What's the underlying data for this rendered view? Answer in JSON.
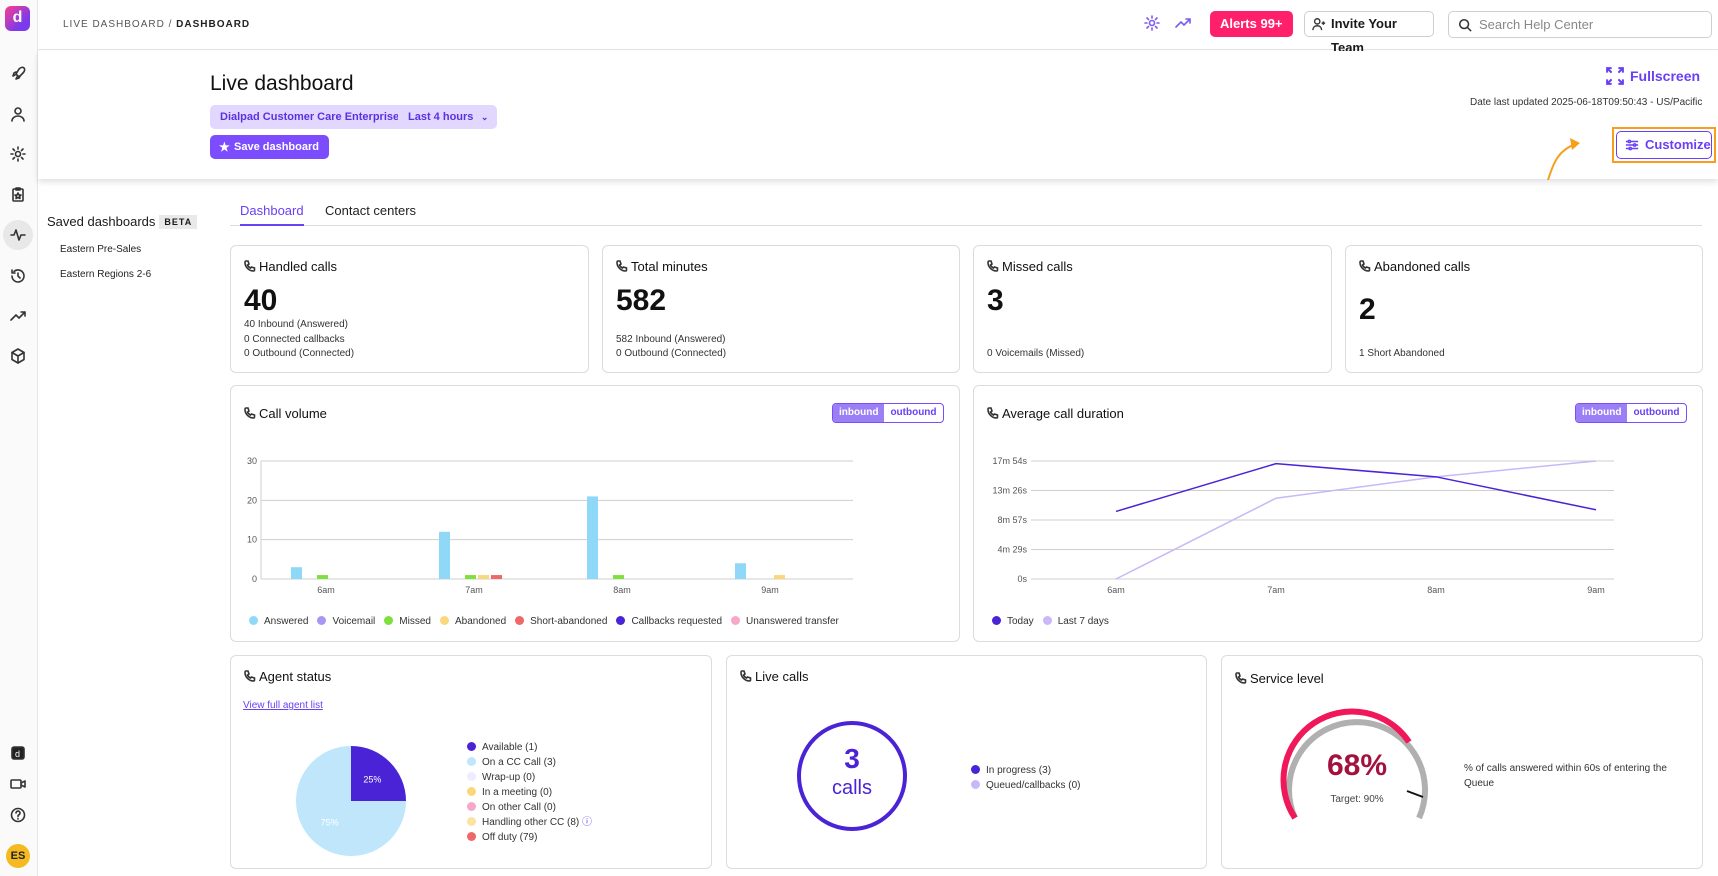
{
  "breadcrumb": {
    "section": "LIVE DASHBOARD",
    "sep": " / ",
    "page": "DASHBOARD"
  },
  "topbar": {
    "alerts_label": "Alerts 99+",
    "invite_label": "Invite Your Team",
    "search_placeholder": "Search Help Center"
  },
  "header": {
    "title": "Live dashboard",
    "chip_org": "Dialpad Customer Care Enterprise",
    "chip_range": "Last 4 hours",
    "save_label": "Save dashboard",
    "fullscreen_label": "Fullscreen",
    "updated": "Date last updated 2025-06-18T09:50:43 - US/Pacific",
    "customize_label": "Customize"
  },
  "saved": {
    "title": "Saved dashboards",
    "badge": "BETA",
    "items": [
      "Eastern Pre-Sales",
      "Eastern Regions 2-6"
    ]
  },
  "tabs": [
    "Dashboard",
    "Contact centers"
  ],
  "stats": [
    {
      "title": "Handled calls",
      "value": "40",
      "lines": [
        "40 Inbound (Answered)",
        "0 Connected callbacks",
        "0 Outbound (Connected)"
      ]
    },
    {
      "title": "Total minutes",
      "value": "582",
      "lines": [
        "582 Inbound (Answered)",
        "0 Outbound (Connected)"
      ]
    },
    {
      "title": "Missed calls",
      "value": "3",
      "lines": [
        "0 Voicemails (Missed)"
      ]
    },
    {
      "title": "Abandoned calls",
      "value": "2",
      "lines": [
        "1 Short Abandoned"
      ]
    }
  ],
  "toggle": {
    "inbound": "inbound",
    "outbound": "outbound"
  },
  "call_volume": {
    "title": "Call volume",
    "legend": [
      "Answered",
      "Voicemail",
      "Missed",
      "Abandoned",
      "Short-abandoned",
      "Callbacks requested",
      "Unanswered transfer"
    ],
    "colors": [
      "#8fd8f7",
      "#a996f2",
      "#7ee03a",
      "#f9d77a",
      "#ef6767",
      "#4a23d6",
      "#f7a8c9"
    ]
  },
  "avg_duration": {
    "title": "Average call duration",
    "legend": [
      "Today",
      "Last 7 days"
    ],
    "colors": [
      "#4a23d6",
      "#c9b8f7"
    ]
  },
  "agent_status": {
    "title": "Agent status",
    "link": "View full agent list",
    "legend": [
      "Available (1)",
      "On a CC Call (3)",
      "Wrap-up (0)",
      "In a meeting (0)",
      "On other Call (0)",
      "Handling other CC (8)",
      "Off duty (79)"
    ],
    "colors": [
      "#4a23d6",
      "#bfe6fb",
      "#f1ecfd",
      "#f9d77a",
      "#f7a8c9",
      "#fbe3a0",
      "#ef6767"
    ],
    "pie_labels": [
      "25%",
      "75%"
    ]
  },
  "live_calls": {
    "title": "Live calls",
    "count": "3",
    "unit": "calls",
    "legend": [
      "In progress (3)",
      "Queued/callbacks (0)"
    ],
    "colors": [
      "#4a23d6",
      "#c9b8f7"
    ]
  },
  "service_level": {
    "title": "Service level",
    "value": "68%",
    "target": "Target: 90%",
    "description": "% of calls answered within 60s of entering the Queue"
  },
  "chart_data": [
    {
      "type": "bar",
      "title": "Call volume",
      "categories": [
        "6am",
        "7am",
        "8am",
        "9am"
      ],
      "ylim": [
        0,
        30
      ],
      "yticks": [
        "0",
        "10",
        "20",
        "30"
      ],
      "series": [
        {
          "name": "Answered",
          "values": [
            3,
            12,
            21,
            4
          ]
        },
        {
          "name": "Voicemail",
          "values": [
            0,
            0,
            0,
            0
          ]
        },
        {
          "name": "Missed",
          "values": [
            1,
            1,
            1,
            0
          ]
        },
        {
          "name": "Abandoned",
          "values": [
            0,
            1,
            0,
            1
          ]
        },
        {
          "name": "Short-abandoned",
          "values": [
            0,
            1,
            0,
            0
          ]
        },
        {
          "name": "Callbacks requested",
          "values": [
            0,
            0,
            0,
            0
          ]
        },
        {
          "name": "Unanswered transfer",
          "values": [
            0,
            0,
            0,
            0
          ]
        }
      ]
    },
    {
      "type": "line",
      "title": "Average call duration",
      "categories": [
        "6am",
        "7am",
        "8am",
        "9am"
      ],
      "yticks": [
        "0s",
        "4m 29s",
        "8m 57s",
        "13m 26s",
        "17m 54s"
      ],
      "ylim_seconds": [
        0,
        1074
      ],
      "series": [
        {
          "name": "Today",
          "values_seconds": [
            615,
            1050,
            930,
            630
          ]
        },
        {
          "name": "Last 7 days",
          "values_seconds": [
            0,
            735,
            930,
            1074
          ]
        }
      ]
    },
    {
      "type": "pie",
      "title": "Agent status",
      "slices": [
        {
          "label": "25%",
          "value": 25
        },
        {
          "label": "75%",
          "value": 75
        }
      ]
    }
  ]
}
